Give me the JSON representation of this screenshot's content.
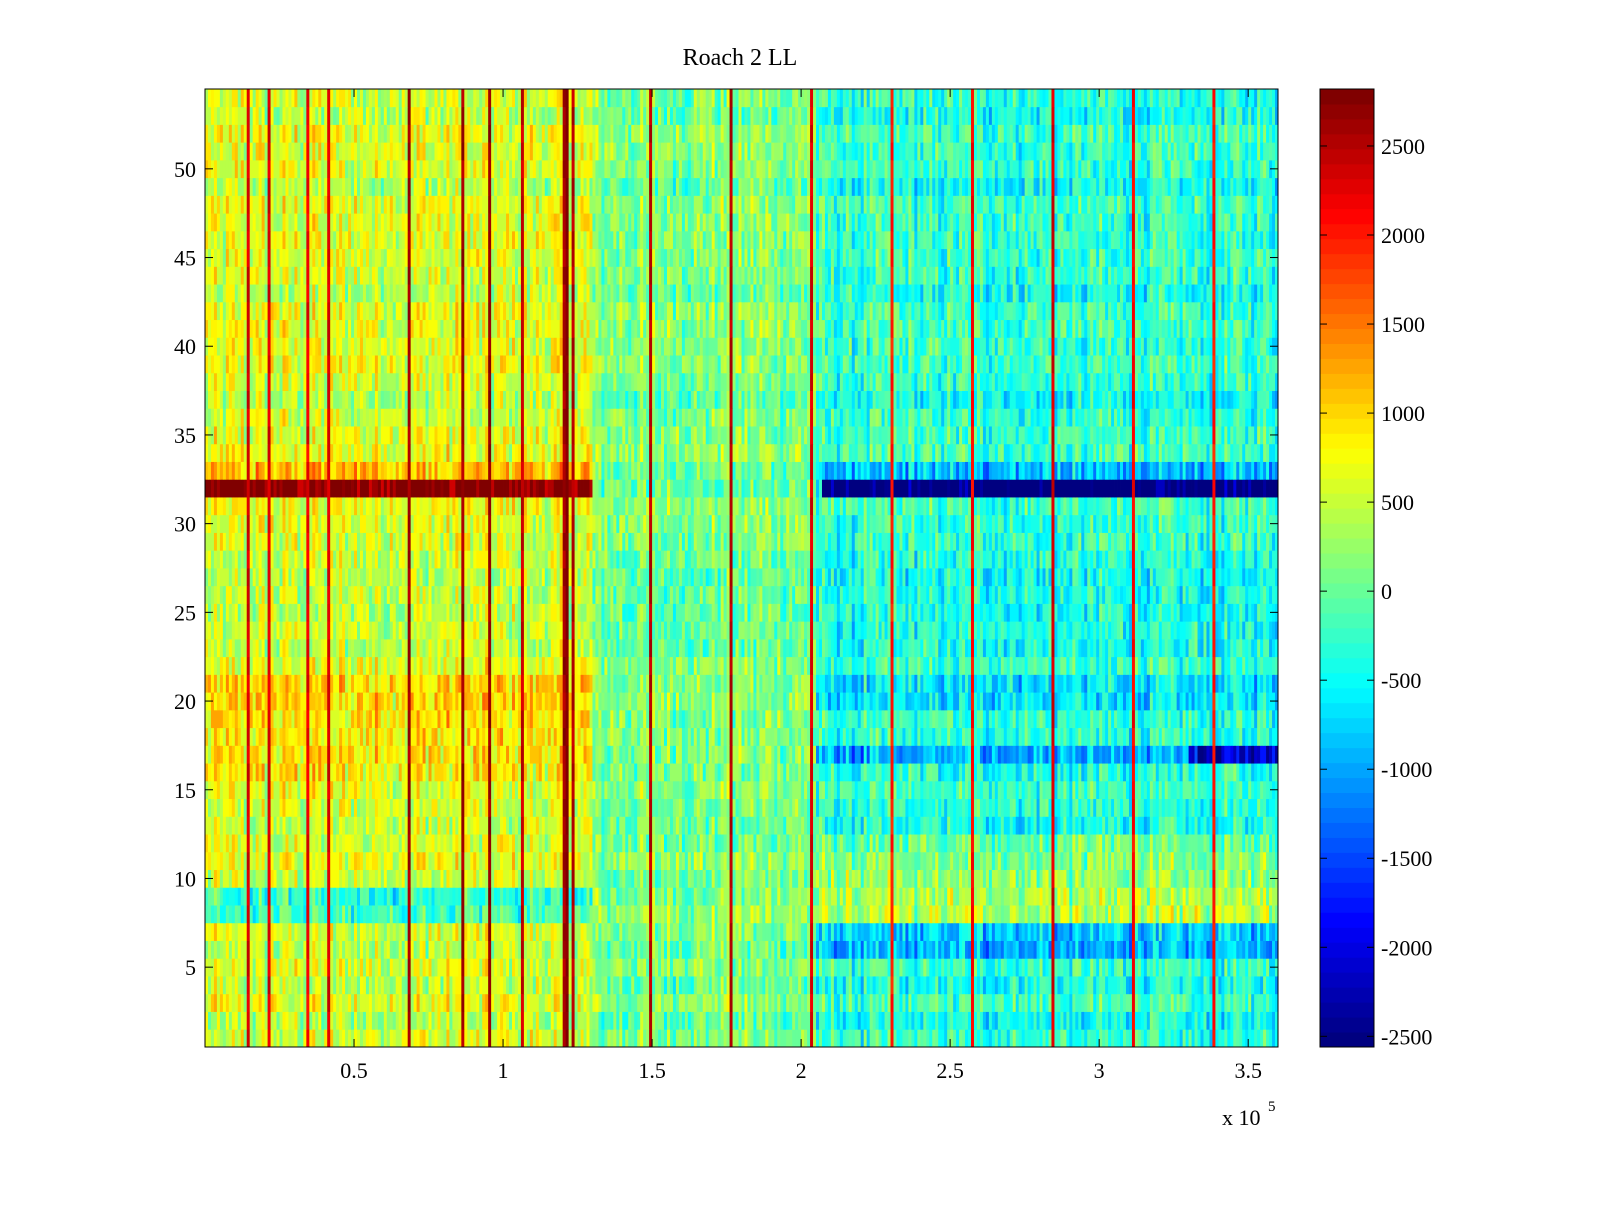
{
  "chart_data": {
    "type": "heatmap",
    "title": "Roach 2 LL",
    "xlabel": "",
    "ylabel": "",
    "x_exponent_label": "x 10",
    "x_exponent": "5",
    "xlim": [
      0,
      360000
    ],
    "ylim": [
      0.5,
      54.5
    ],
    "rows": 54,
    "column_width": 1000,
    "x_ticks": [
      50000,
      100000,
      150000,
      200000,
      250000,
      300000,
      350000
    ],
    "x_tick_labels": [
      "0.5",
      "1",
      "1.5",
      "2",
      "2.5",
      "3",
      "3.5"
    ],
    "y_ticks": [
      5,
      10,
      15,
      20,
      25,
      30,
      35,
      40,
      45,
      50
    ],
    "y_tick_labels": [
      "5",
      "10",
      "15",
      "20",
      "25",
      "30",
      "35",
      "40",
      "45",
      "50"
    ],
    "colormap": "jet",
    "clim": [
      -2560,
      2820
    ],
    "colorbar_ticks": [
      2500,
      2000,
      1500,
      1000,
      500,
      0,
      -500,
      -1000,
      -1500,
      -2000,
      -2500
    ],
    "colorbar_tick_labels": [
      "2500",
      "2000",
      "1500",
      "1000",
      "500",
      "0",
      "-500",
      "-1000",
      "-1500",
      "-2000",
      "-2500"
    ],
    "baseline_segments": [
      {
        "x_range": [
          0,
          130000
        ],
        "value": 550
      },
      {
        "x_range": [
          130000,
          205000
        ],
        "value": 100
      },
      {
        "x_range": [
          205000,
          360000
        ],
        "value": -350
      }
    ],
    "noise_amplitude": 420,
    "row_offsets": [
      {
        "rows": [
          32
        ],
        "x_range": [
          0,
          130000
        ],
        "value": 2400
      },
      {
        "rows": [
          32
        ],
        "x_range": [
          130000,
          207000
        ],
        "value": 0
      },
      {
        "rows": [
          32
        ],
        "x_range": [
          207000,
          360000
        ],
        "value": -2300
      },
      {
        "rows": [
          33
        ],
        "x_range": [
          0,
          130000
        ],
        "value": 600
      },
      {
        "rows": [
          33
        ],
        "x_range": [
          207000,
          360000
        ],
        "value": -500
      },
      {
        "rows": [
          8,
          9
        ],
        "x_range": [
          0,
          130000
        ],
        "value": -900
      },
      {
        "rows": [
          8,
          9,
          10
        ],
        "x_range": [
          205000,
          360000
        ],
        "value": 650
      },
      {
        "rows": [
          6,
          7
        ],
        "x_range": [
          205000,
          360000
        ],
        "value": -500
      },
      {
        "rows": [
          17
        ],
        "x_range": [
          205000,
          360000
        ],
        "value": -600
      },
      {
        "rows": [
          17
        ],
        "x_range": [
          330000,
          360000
        ],
        "value": -1200
      },
      {
        "rows": [
          20,
          21
        ],
        "x_range": [
          205000,
          360000
        ],
        "value": -400
      },
      {
        "rows": [
          16,
          17,
          18,
          19,
          20,
          21
        ],
        "x_range": [
          0,
          130000
        ],
        "value": 300
      },
      {
        "rows": [
          11,
          12
        ],
        "x_range": [
          205000,
          360000
        ],
        "value": 350
      }
    ],
    "vertical_stripes": [
      {
        "x": 14400,
        "value": 2300
      },
      {
        "x": 21500,
        "value": 2300
      },
      {
        "x": 34600,
        "value": 2200
      },
      {
        "x": 41300,
        "value": 2300
      },
      {
        "x": 68500,
        "value": 2600
      },
      {
        "x": 86200,
        "value": 2600
      },
      {
        "x": 95300,
        "value": 2700
      },
      {
        "x": 106700,
        "value": 2400
      },
      {
        "x": 120000,
        "value": 2600
      },
      {
        "x": 121500,
        "value": 2800
      },
      {
        "x": 123000,
        "value": 2500
      },
      {
        "x": 149700,
        "value": 2500
      },
      {
        "x": 176500,
        "value": 2500
      },
      {
        "x": 203400,
        "value": 2300
      },
      {
        "x": 230500,
        "value": 2000
      },
      {
        "x": 257000,
        "value": 2100
      },
      {
        "x": 284600,
        "value": 2300
      },
      {
        "x": 311400,
        "value": 2100
      },
      {
        "x": 338300,
        "value": 2000
      }
    ]
  }
}
